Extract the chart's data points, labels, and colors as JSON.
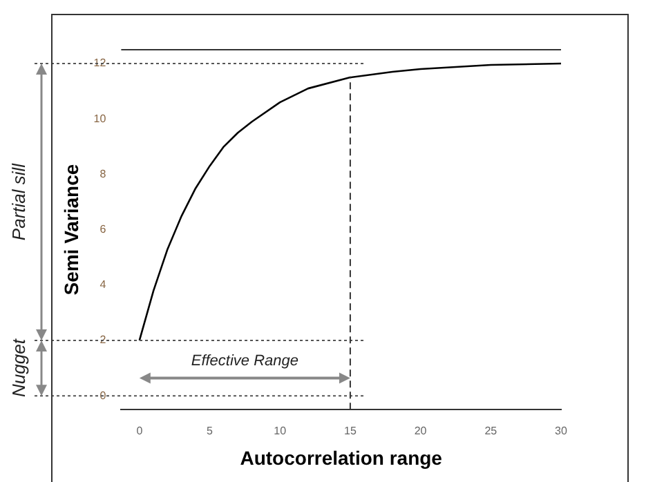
{
  "chart_data": {
    "type": "line",
    "xlabel": "Autocorrelation range",
    "ylabel": "Semi Variance",
    "x": [
      0,
      1,
      2,
      3,
      4,
      5,
      6,
      7,
      8,
      10,
      12,
      15,
      18,
      20,
      25,
      30
    ],
    "series": [
      {
        "color": "#000000",
        "values": [
          2,
          3.8,
          5.3,
          6.5,
          7.5,
          8.3,
          9.0,
          9.5,
          9.9,
          10.6,
          11.1,
          11.5,
          11.7,
          11.8,
          11.95,
          12.0
        ]
      }
    ],
    "xlim": [
      -1.3,
      30
    ],
    "xticks": [
      0,
      5,
      10,
      15,
      20,
      25,
      30
    ],
    "ylim": [
      -0.5,
      12.5
    ],
    "yticks": [
      0,
      2,
      4,
      6,
      8,
      10,
      12
    ],
    "grid": false,
    "legend": false,
    "marker": "none",
    "line_style": "solid",
    "ref_lines": [
      {
        "axis": "y",
        "value": 12,
        "line_style": "dotted",
        "color": "#555555"
      },
      {
        "axis": "y",
        "value": 2,
        "line_style": "dotted",
        "color": "#555555"
      },
      {
        "axis": "y",
        "value": 0,
        "line_style": "dotted",
        "color": "#555555"
      },
      {
        "axis": "x",
        "value": 15,
        "line_style": "dashed",
        "color": "#333333"
      }
    ],
    "annotations": [
      "Partial sill",
      "Nugget",
      "Effective Range"
    ]
  }
}
